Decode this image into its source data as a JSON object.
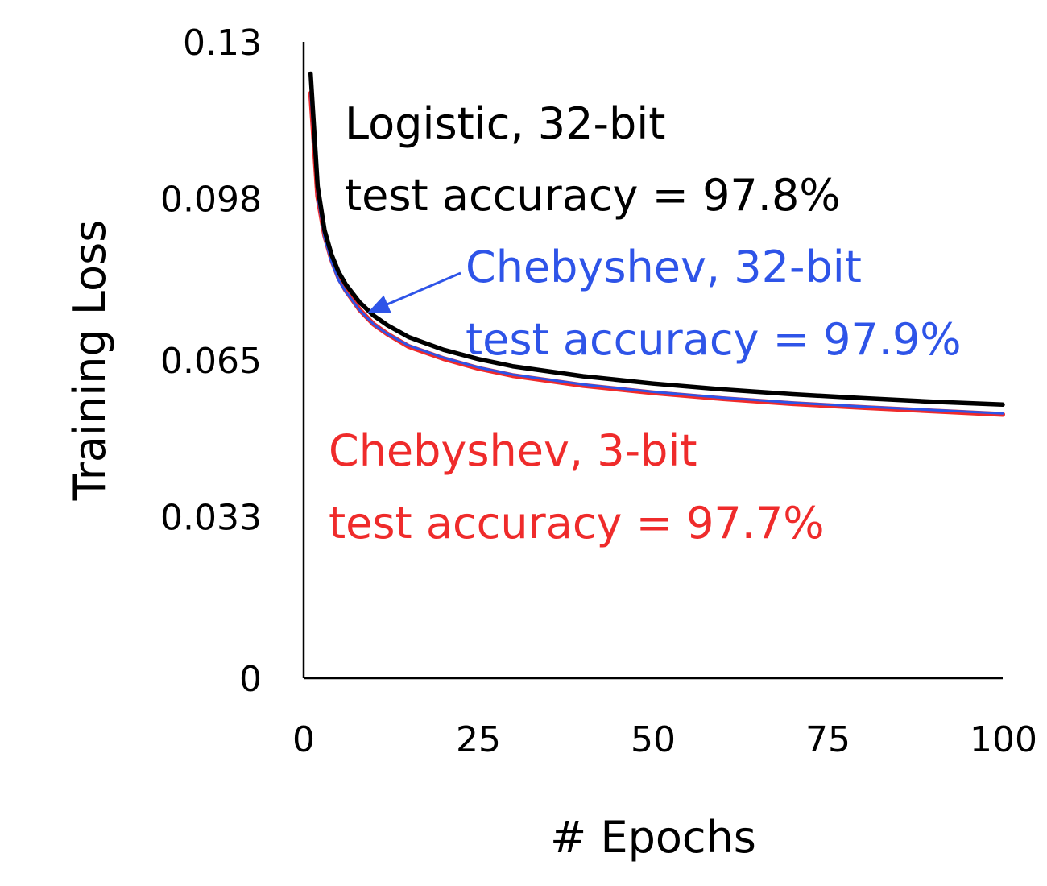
{
  "chart_data": {
    "type": "line",
    "title": "",
    "xlabel": "# Epochs",
    "ylabel": "Training Loss",
    "xlim": [
      0,
      100
    ],
    "ylim": [
      0,
      0.13
    ],
    "x_ticks": [
      0,
      25,
      50,
      75,
      100
    ],
    "x_tick_labels": [
      "0",
      "25",
      "50",
      "75",
      "100"
    ],
    "y_ticks": [
      0,
      0.033,
      0.065,
      0.098,
      0.13
    ],
    "y_tick_labels": [
      "0",
      "0.033",
      "0.065",
      "0.098",
      "0.13"
    ],
    "grid": false,
    "legend": "none",
    "x": [
      1,
      2,
      3,
      4,
      5,
      6,
      8,
      10,
      12,
      15,
      20,
      25,
      30,
      40,
      50,
      60,
      70,
      80,
      90,
      100
    ],
    "series": [
      {
        "key": "chebyshev-3bit",
        "color": "#ef2b2b",
        "values": [
          0.1195,
          0.0985,
          0.0905,
          0.0855,
          0.0818,
          0.0793,
          0.0753,
          0.0723,
          0.0703,
          0.0678,
          0.0653,
          0.0633,
          0.0618,
          0.0598,
          0.0583,
          0.0571,
          0.0561,
          0.0553,
          0.0546,
          0.0539
        ]
      },
      {
        "key": "chebyshev-32bit",
        "color": "#2e54e8",
        "values": [
          0.1195,
          0.0985,
          0.09,
          0.085,
          0.0813,
          0.079,
          0.0752,
          0.0723,
          0.0703,
          0.068,
          0.0655,
          0.0635,
          0.062,
          0.06,
          0.0585,
          0.0573,
          0.0563,
          0.0555,
          0.0548,
          0.0541
        ]
      },
      {
        "key": "logistic-32bit",
        "color": "#000000",
        "values": [
          0.1235,
          0.1005,
          0.0915,
          0.0865,
          0.083,
          0.0805,
          0.0768,
          0.0741,
          0.0721,
          0.0697,
          0.0671,
          0.0652,
          0.0637,
          0.0617,
          0.0602,
          0.059,
          0.058,
          0.0572,
          0.0565,
          0.0559
        ]
      }
    ],
    "annotations": [
      {
        "key": "logistic",
        "color": "#000000",
        "line1": "Logistic, 32-bit",
        "line2": "test accuracy = 97.8%"
      },
      {
        "key": "chebyshev32",
        "color": "#2e54e8",
        "line1": "Chebyshev, 32-bit",
        "line2": "test accuracy = 97.9%",
        "arrow_to": {
          "x": 9,
          "y": 0.0742
        }
      },
      {
        "key": "chebyshev3",
        "color": "#ef2b2b",
        "line1": "Chebyshev, 3-bit",
        "line2": "test accuracy = 97.7%"
      }
    ]
  }
}
